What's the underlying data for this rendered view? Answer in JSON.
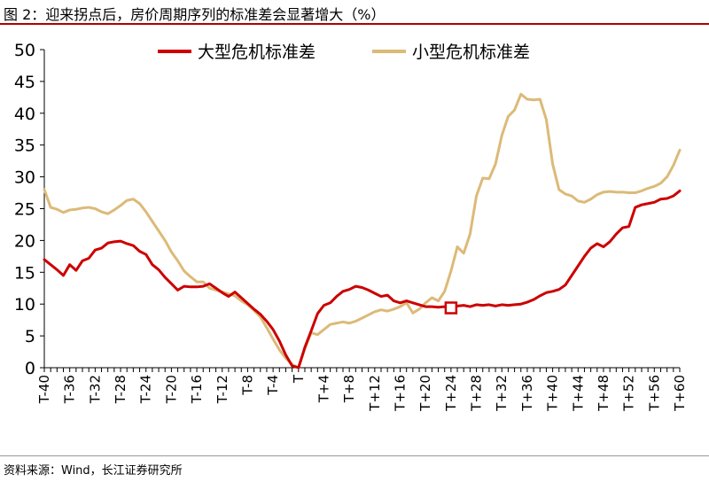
{
  "header": {
    "title": "图 2：迎来拐点后，房价周期序列的标准差会显著增大（%）"
  },
  "footer": {
    "source": "资料来源：Wind，长江证券研究所"
  },
  "chart_data": {
    "type": "line",
    "title": "",
    "xlabel": "",
    "ylabel": "",
    "ylim": [
      0,
      50
    ],
    "yticks": [
      0,
      5,
      10,
      15,
      20,
      25,
      30,
      35,
      40,
      45,
      50
    ],
    "x_categories": [
      "T-40",
      "T-39",
      "T-38",
      "T-37",
      "T-36",
      "T-35",
      "T-34",
      "T-33",
      "T-32",
      "T-31",
      "T-30",
      "T-29",
      "T-28",
      "T-27",
      "T-26",
      "T-25",
      "T-24",
      "T-23",
      "T-22",
      "T-21",
      "T-20",
      "T-19",
      "T-18",
      "T-17",
      "T-16",
      "T-15",
      "T-14",
      "T-13",
      "T-12",
      "T-11",
      "T-10",
      "T-9",
      "T-8",
      "T-7",
      "T-6",
      "T-5",
      "T-4",
      "T-3",
      "T-2",
      "T-1",
      "T",
      "T+1",
      "T+2",
      "T+3",
      "T+4",
      "T+5",
      "T+6",
      "T+7",
      "T+8",
      "T+9",
      "T+10",
      "T+11",
      "T+12",
      "T+13",
      "T+14",
      "T+15",
      "T+16",
      "T+17",
      "T+18",
      "T+19",
      "T+20",
      "T+21",
      "T+22",
      "T+23",
      "T+24",
      "T+25",
      "T+26",
      "T+27",
      "T+28",
      "T+29",
      "T+30",
      "T+31",
      "T+32",
      "T+33",
      "T+34",
      "T+35",
      "T+36",
      "T+37",
      "T+38",
      "T+39",
      "T+40",
      "T+41",
      "T+42",
      "T+43",
      "T+44",
      "T+45",
      "T+46",
      "T+47",
      "T+48",
      "T+49",
      "T+50",
      "T+51",
      "T+52",
      "T+53",
      "T+54",
      "T+55",
      "T+56",
      "T+57",
      "T+58",
      "T+59",
      "T+60"
    ],
    "x_tick_labels": [
      "T-40",
      "T-36",
      "T-32",
      "T-28",
      "T-24",
      "T-20",
      "T-16",
      "T-12",
      "T-8",
      "T-4",
      "T",
      "T+4",
      "T+8",
      "T+12",
      "T+16",
      "T+20",
      "T+24",
      "T+28",
      "T+32",
      "T+36",
      "T+40",
      "T+44",
      "T+48",
      "T+52",
      "T+56",
      "T+60"
    ],
    "legend_position": "top",
    "grid": false,
    "series": [
      {
        "name": "大型危机标准差",
        "color": "#cc0000",
        "values": [
          17.0,
          16.2,
          15.4,
          14.5,
          16.2,
          15.3,
          16.8,
          17.2,
          18.5,
          18.8,
          19.6,
          19.8,
          19.9,
          19.5,
          19.2,
          18.3,
          17.8,
          16.2,
          15.4,
          14.2,
          13.2,
          12.2,
          12.8,
          12.7,
          12.7,
          12.8,
          13.2,
          12.5,
          11.8,
          11.2,
          11.9,
          11.0,
          10.1,
          9.2,
          8.4,
          7.3,
          6.0,
          4.2,
          2.0,
          0.3,
          0.0,
          3.2,
          5.8,
          8.5,
          9.8,
          10.2,
          11.2,
          12.0,
          12.3,
          12.8,
          12.6,
          12.2,
          11.7,
          11.2,
          11.4,
          10.5,
          10.2,
          10.5,
          10.2,
          9.9,
          9.6,
          9.6,
          9.5,
          9.6,
          9.4,
          9.7,
          9.8,
          9.6,
          9.9,
          9.8,
          9.9,
          9.7,
          9.9,
          9.8,
          9.9,
          10.0,
          10.3,
          10.7,
          11.3,
          11.8,
          12.0,
          12.3,
          13.0,
          14.5,
          16.0,
          17.5,
          18.8,
          19.5,
          19.0,
          19.8,
          21.0,
          22.0,
          22.2,
          25.2,
          25.6,
          25.8,
          26.0,
          26.5,
          26.6,
          27.0,
          27.8
        ]
      },
      {
        "name": "小型危机标准差",
        "color": "#dcba78",
        "values": [
          28.0,
          25.2,
          24.9,
          24.4,
          24.8,
          24.9,
          25.1,
          25.2,
          25.0,
          24.5,
          24.2,
          24.8,
          25.5,
          26.3,
          26.5,
          25.8,
          24.5,
          23.0,
          21.5,
          20.0,
          18.2,
          16.8,
          15.2,
          14.3,
          13.5,
          13.5,
          12.5,
          12.2,
          11.9,
          11.6,
          11.3,
          10.5,
          9.9,
          9.0,
          8.0,
          6.3,
          4.5,
          2.8,
          1.5,
          0.5,
          0.0,
          3.0,
          5.5,
          5.2,
          6.0,
          6.8,
          7.0,
          7.2,
          7.0,
          7.3,
          7.8,
          8.3,
          8.8,
          9.1,
          8.9,
          9.2,
          9.6,
          10.2,
          8.6,
          9.2,
          10.2,
          11.0,
          10.5,
          12.0,
          15.2,
          19.0,
          18.0,
          21.0,
          27.0,
          29.8,
          29.7,
          32.0,
          36.5,
          39.5,
          40.5,
          43.0,
          42.2,
          42.1,
          42.2,
          39.0,
          32.0,
          28.0,
          27.3,
          27.0,
          26.2,
          26.0,
          26.5,
          27.2,
          27.6,
          27.7,
          27.6,
          27.6,
          27.5,
          27.5,
          27.8,
          28.2,
          28.5,
          29.0,
          30.0,
          31.8,
          34.2
        ]
      }
    ],
    "marker": {
      "series": "大型危机标准差",
      "x": "T+24",
      "y": 9.4,
      "shape": "square"
    }
  }
}
